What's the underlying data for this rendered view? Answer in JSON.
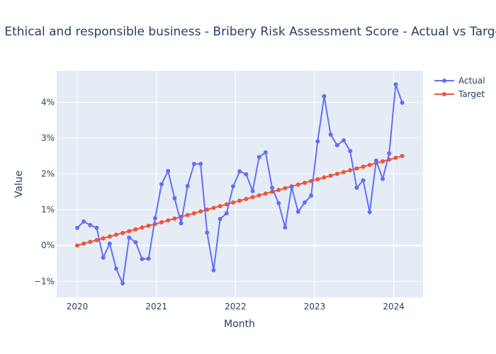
{
  "chart_data": {
    "type": "line",
    "title": "Ethical and responsible business - Bribery Risk Assessment Score - Actual vs Target",
    "xlabel": "Month",
    "ylabel": "Value",
    "x_start": "2020-01-01",
    "x_step_days": 30,
    "xlim": [
      2019.74,
      2024.37
    ],
    "ylim": [
      -1.45,
      4.88
    ],
    "x_ticks": [
      2020,
      2021,
      2022,
      2023,
      2024
    ],
    "x_tick_labels": [
      "2020",
      "2021",
      "2022",
      "2023",
      "2024"
    ],
    "y_ticks": [
      -1,
      0,
      1,
      2,
      3,
      4
    ],
    "y_tick_labels": [
      "−1%",
      "0%",
      "1%",
      "2%",
      "3%",
      "4%"
    ],
    "grid": true,
    "legend_position": "top-right",
    "series": [
      {
        "name": "Actual",
        "color": "#636efa",
        "values": [
          0.49,
          0.67,
          0.57,
          0.49,
          -0.34,
          0.05,
          -0.65,
          -1.06,
          0.22,
          0.09,
          -0.38,
          -0.37,
          0.76,
          1.71,
          2.08,
          1.32,
          0.62,
          1.66,
          2.28,
          2.28,
          0.36,
          -0.69,
          0.74,
          0.9,
          1.65,
          2.07,
          1.99,
          1.52,
          2.47,
          2.6,
          1.61,
          1.18,
          0.5,
          1.63,
          0.94,
          1.2,
          1.39,
          2.91,
          4.17,
          3.1,
          2.8,
          2.94,
          2.64,
          1.61,
          1.82,
          0.93,
          2.37,
          1.86,
          2.57,
          4.5,
          3.99
        ]
      },
      {
        "name": "Target",
        "color": "#EF553B",
        "values": [
          0,
          0.05,
          0.1,
          0.15,
          0.2,
          0.25,
          0.3,
          0.35,
          0.4,
          0.45,
          0.5,
          0.55,
          0.6,
          0.65,
          0.7,
          0.75,
          0.8,
          0.85,
          0.9,
          0.95,
          1.0,
          1.05,
          1.1,
          1.15,
          1.2,
          1.25,
          1.3,
          1.35,
          1.4,
          1.45,
          1.5,
          1.55,
          1.6,
          1.65,
          1.7,
          1.75,
          1.8,
          1.85,
          1.9,
          1.95,
          2.0,
          2.05,
          2.1,
          2.15,
          2.2,
          2.25,
          2.3,
          2.35,
          2.4,
          2.45,
          2.5
        ]
      }
    ]
  }
}
